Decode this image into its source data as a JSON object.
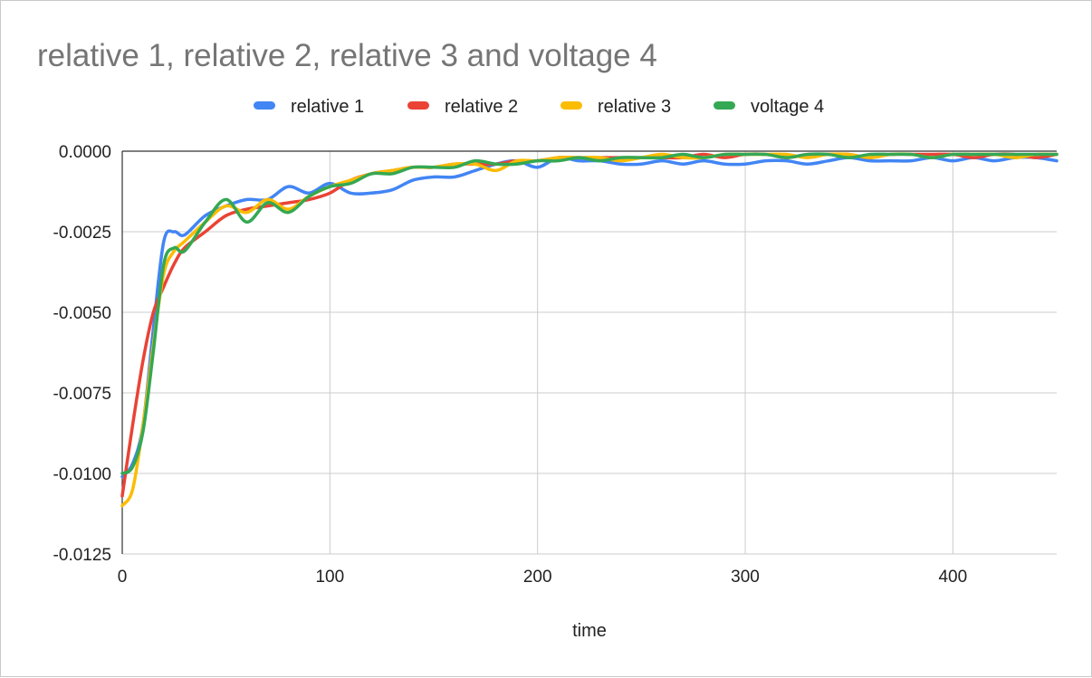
{
  "chart_data": {
    "type": "line",
    "title": "relative 1, relative 2, relative 3 and voltage 4",
    "xlabel": "time",
    "ylabel": "",
    "xlim": [
      0,
      450
    ],
    "ylim": [
      -0.0125,
      0.0
    ],
    "xticks": [
      0,
      100,
      200,
      300,
      400
    ],
    "xtick_labels": [
      "0",
      "100",
      "200",
      "300",
      "400"
    ],
    "yticks": [
      0.0,
      -0.0025,
      -0.005,
      -0.0075,
      -0.01,
      -0.0125
    ],
    "ytick_labels": [
      "0.0000",
      "-0.0025",
      "-0.0050",
      "-0.0075",
      "-0.0100",
      "-0.0125"
    ],
    "grid": true,
    "legend_position": "top",
    "x": [
      0,
      5,
      10,
      15,
      20,
      25,
      30,
      40,
      50,
      60,
      70,
      80,
      90,
      100,
      110,
      120,
      130,
      140,
      150,
      160,
      170,
      180,
      190,
      200,
      210,
      220,
      230,
      240,
      250,
      260,
      270,
      280,
      290,
      300,
      310,
      320,
      330,
      340,
      350,
      360,
      370,
      380,
      390,
      400,
      410,
      420,
      430,
      440,
      450
    ],
    "series": [
      {
        "name": "relative 1",
        "color": "#4285f4",
        "values": [
          -0.0101,
          -0.0097,
          -0.0085,
          -0.0055,
          -0.0028,
          -0.0025,
          -0.0026,
          -0.002,
          -0.0017,
          -0.0015,
          -0.0015,
          -0.0011,
          -0.0013,
          -0.001,
          -0.0013,
          -0.0013,
          -0.0012,
          -0.0009,
          -0.0008,
          -0.0008,
          -0.0006,
          -0.0004,
          -0.0003,
          -0.0005,
          -0.0002,
          -0.0003,
          -0.0003,
          -0.0004,
          -0.0004,
          -0.0003,
          -0.0004,
          -0.0003,
          -0.0004,
          -0.0004,
          -0.0003,
          -0.0003,
          -0.0004,
          -0.0003,
          -0.0002,
          -0.0003,
          -0.0003,
          -0.0003,
          -0.0002,
          -0.0003,
          -0.0002,
          -0.0003,
          -0.0002,
          -0.0002,
          -0.0003
        ]
      },
      {
        "name": "relative 2",
        "color": "#ea4335",
        "values": [
          -0.0107,
          -0.0085,
          -0.0065,
          -0.005,
          -0.0042,
          -0.0035,
          -0.003,
          -0.0025,
          -0.002,
          -0.0018,
          -0.0017,
          -0.0016,
          -0.0015,
          -0.0013,
          -0.0009,
          -0.0007,
          -0.0006,
          -0.0005,
          -0.0005,
          -0.0004,
          -0.0004,
          -0.0004,
          -0.0003,
          -0.0003,
          -0.0002,
          -0.0002,
          -0.0002,
          -0.0002,
          -0.0002,
          -0.0002,
          -0.0002,
          -0.0001,
          -0.0002,
          -0.0001,
          -0.0001,
          -0.0002,
          -0.0001,
          -0.0001,
          -0.0001,
          -0.0002,
          -0.0001,
          -0.0001,
          -0.0001,
          -0.0001,
          -0.0002,
          -0.0001,
          -0.0001,
          -0.0002,
          -0.0001
        ]
      },
      {
        "name": "relative 3",
        "color": "#fbbc04",
        "values": [
          -0.011,
          -0.0105,
          -0.0085,
          -0.006,
          -0.0038,
          -0.0031,
          -0.0028,
          -0.0022,
          -0.0017,
          -0.0019,
          -0.0015,
          -0.0018,
          -0.0014,
          -0.0011,
          -0.0009,
          -0.0007,
          -0.0006,
          -0.0005,
          -0.0005,
          -0.0004,
          -0.0004,
          -0.0006,
          -0.0003,
          -0.0003,
          -0.0002,
          -0.0002,
          -0.0002,
          -0.0003,
          -0.0002,
          -0.0001,
          -0.0002,
          -0.0002,
          -0.0001,
          -0.0001,
          -0.0001,
          -0.0001,
          -0.0002,
          -0.0001,
          -0.0001,
          -0.0002,
          -0.0001,
          -0.0001,
          -0.0002,
          -0.0001,
          -0.0001,
          -0.0001,
          -0.0002,
          -0.0001,
          -0.0001
        ]
      },
      {
        "name": "voltage 4",
        "color": "#34a853",
        "values": [
          -0.01,
          -0.0098,
          -0.0087,
          -0.0062,
          -0.0035,
          -0.003,
          -0.0031,
          -0.0022,
          -0.0015,
          -0.0022,
          -0.0016,
          -0.0019,
          -0.0014,
          -0.0011,
          -0.001,
          -0.0007,
          -0.0007,
          -0.0005,
          -0.0005,
          -0.0005,
          -0.0003,
          -0.0004,
          -0.0004,
          -0.0003,
          -0.0003,
          -0.0002,
          -0.0003,
          -0.0002,
          -0.0002,
          -0.0002,
          -0.0001,
          -0.0002,
          -0.0001,
          -0.0001,
          -0.0001,
          -0.0002,
          -0.0001,
          -0.0001,
          -0.0002,
          -0.0001,
          -0.0001,
          -0.0001,
          -0.0002,
          -0.0001,
          -0.0001,
          -0.0001,
          -0.0001,
          -0.0001,
          -0.0001
        ]
      }
    ]
  }
}
